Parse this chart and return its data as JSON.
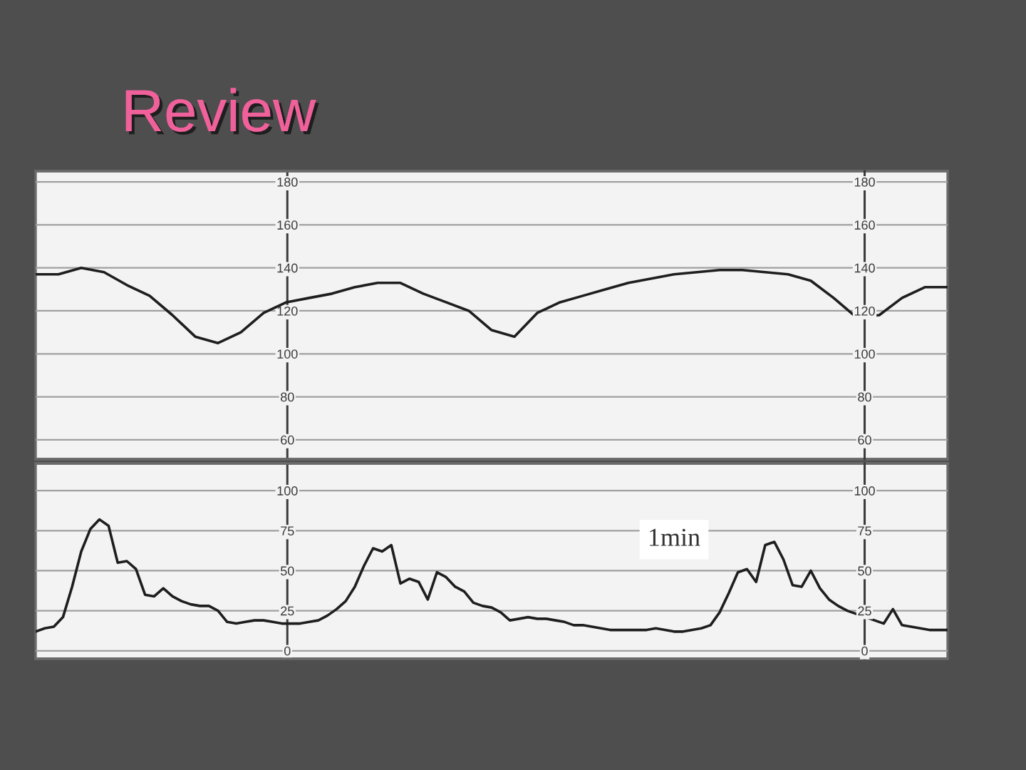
{
  "chart_data": [
    {
      "type": "line",
      "title": "Review",
      "categories": [
        null,
        null,
        null,
        null,
        null,
        null,
        null,
        null,
        null,
        null,
        null,
        null,
        null,
        null,
        null,
        null,
        null,
        null,
        null,
        null,
        null,
        null,
        null,
        null,
        null,
        null,
        null,
        null,
        null,
        null,
        null,
        null,
        null,
        null,
        null,
        null,
        null,
        null,
        null,
        null,
        null
      ],
      "values": [
        137,
        137,
        140,
        138,
        132,
        127,
        118,
        108,
        105,
        110,
        119,
        124,
        126,
        128,
        131,
        133,
        133,
        128,
        124,
        120,
        111,
        108,
        119,
        124,
        127,
        130,
        133,
        135,
        137,
        138,
        139,
        139,
        138,
        137,
        134,
        126,
        117,
        118,
        126,
        131,
        131
      ],
      "color": "#1e1e1e",
      "ylim": [
        51,
        185
      ],
      "yticks": [
        60,
        80,
        100,
        120,
        140,
        160,
        180
      ],
      "y2lim": [
        51,
        185
      ],
      "y2ticks": [
        60,
        80,
        100,
        120,
        140,
        160,
        180
      ],
      "grid": "y",
      "tick_labels": "y"
    },
    {
      "type": "line",
      "categories": [
        null,
        null,
        null,
        null,
        null,
        null,
        null,
        null,
        null,
        null,
        null,
        null,
        null,
        null,
        null,
        null,
        null,
        null,
        null,
        null,
        null,
        null,
        null,
        null,
        null,
        null,
        null,
        null,
        null,
        null,
        null,
        null,
        null,
        null,
        null,
        null,
        null,
        null,
        null,
        null,
        null,
        null,
        null,
        null,
        null,
        null,
        null,
        null,
        null,
        null,
        null,
        null,
        null,
        null,
        null,
        null,
        null,
        null,
        null,
        null,
        null,
        null,
        null,
        null,
        null,
        null,
        null,
        null,
        null,
        null,
        null,
        null,
        null,
        null,
        null,
        null,
        null,
        null,
        null,
        null,
        null,
        null,
        null,
        null,
        null,
        null,
        null,
        null,
        null,
        null,
        null,
        null,
        null,
        null,
        null,
        null,
        null,
        null,
        null,
        null,
        null
      ],
      "values": [
        12,
        14,
        15,
        21,
        40,
        62,
        76,
        82,
        78,
        55,
        56,
        51,
        35,
        34,
        39,
        34,
        31,
        29,
        28,
        28,
        25,
        18,
        17,
        18,
        19,
        19,
        18,
        17,
        17,
        17,
        18,
        19,
        22,
        26,
        31,
        40,
        53,
        64,
        62,
        66,
        42,
        45,
        43,
        32,
        49,
        46,
        40,
        37,
        30,
        28,
        27,
        24,
        19,
        20,
        21,
        20,
        20,
        19,
        18,
        16,
        16,
        15,
        14,
        13,
        13,
        13,
        13,
        13,
        14,
        13,
        12,
        12,
        13,
        14,
        16,
        24,
        36,
        49,
        51,
        43,
        66,
        68,
        57,
        41,
        40,
        50,
        39,
        32,
        28,
        25,
        23,
        21,
        19,
        17,
        26,
        16,
        15,
        14,
        13,
        13,
        13
      ],
      "color": "#1e1e1e",
      "ylim": [
        -5,
        117
      ],
      "yticks": [
        0,
        25,
        50,
        75,
        100
      ],
      "y2lim": [
        -5,
        117
      ],
      "y2ticks": [
        0,
        25,
        50,
        75,
        100
      ],
      "grid": "y",
      "tick_labels": "y",
      "annotations": [
        "1min"
      ]
    }
  ]
}
